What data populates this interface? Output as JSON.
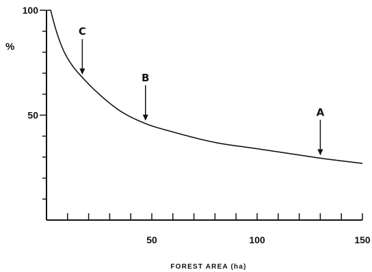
{
  "chart_data": {
    "type": "line",
    "title": "",
    "xlabel": "FOREST AREA (ha)",
    "ylabel": "%",
    "xlim": [
      0,
      150
    ],
    "ylim": [
      0,
      100
    ],
    "x_ticks": [
      50,
      100,
      150
    ],
    "x_minor_step": 10,
    "y_ticks": [
      50,
      100
    ],
    "y_minor_step": 10,
    "grid": false,
    "series": [
      {
        "x": [
          2,
          3,
          5,
          8,
          12,
          17,
          25,
          35,
          47,
          60,
          80,
          100,
          120,
          130,
          150
        ],
        "y": [
          100,
          96,
          89,
          81,
          74,
          68,
          60,
          52,
          46,
          42,
          37,
          34,
          31,
          29.5,
          27
        ]
      }
    ],
    "annotations": [
      {
        "label": "C",
        "x": 17
      },
      {
        "label": "B",
        "x": 47
      },
      {
        "label": "A",
        "x": 130
      }
    ]
  }
}
